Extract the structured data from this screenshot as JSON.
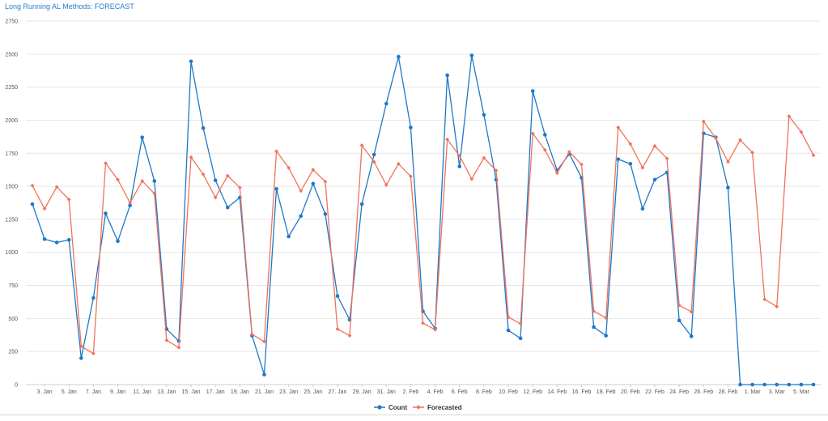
{
  "chart_data": {
    "type": "line",
    "title": "Long Running AL Methods: FORECAST",
    "ylim": [
      0,
      2750
    ],
    "yticks": [
      0,
      250,
      500,
      750,
      1000,
      1250,
      1500,
      1750,
      2000,
      2250,
      2500,
      2750
    ],
    "grid": "horizontal",
    "legend_position": "bottom-center",
    "x_tick_labels": [
      "3. Jan",
      "5. Jan",
      "7. Jan",
      "9. Jan",
      "11. Jan",
      "13. Jan",
      "15. Jan",
      "17. Jan",
      "19. Jan",
      "21. Jan",
      "23. Jan",
      "25. Jan",
      "27. Jan",
      "29. Jan",
      "31. Jan",
      "2. Feb",
      "4. Feb",
      "6. Feb",
      "8. Feb",
      "10. Feb",
      "12. Feb",
      "14. Feb",
      "16. Feb",
      "18. Feb",
      "20. Feb",
      "22. Feb",
      "24. Feb",
      "26. Feb",
      "28. Feb",
      "1. Mar",
      "3. Mar",
      "5. Mar"
    ],
    "x": [
      "2. Jan",
      "3. Jan",
      "4. Jan",
      "5. Jan",
      "6. Jan",
      "7. Jan",
      "8. Jan",
      "9. Jan",
      "10. Jan",
      "11. Jan",
      "12. Jan",
      "13. Jan",
      "14. Jan",
      "15. Jan",
      "16. Jan",
      "17. Jan",
      "18. Jan",
      "19. Jan",
      "20. Jan",
      "21. Jan",
      "22. Jan",
      "23. Jan",
      "24. Jan",
      "25. Jan",
      "26. Jan",
      "27. Jan",
      "28. Jan",
      "29. Jan",
      "30. Jan",
      "31. Jan",
      "1. Feb",
      "2. Feb",
      "3. Feb",
      "4. Feb",
      "5. Feb",
      "6. Feb",
      "7. Feb",
      "8. Feb",
      "9. Feb",
      "10. Feb",
      "11. Feb",
      "12. Feb",
      "13. Feb",
      "14. Feb",
      "15. Feb",
      "16. Feb",
      "17. Feb",
      "18. Feb",
      "19. Feb",
      "20. Feb",
      "21. Feb",
      "22. Feb",
      "23. Feb",
      "24. Feb",
      "25. Feb",
      "26. Feb",
      "27. Feb",
      "28. Feb",
      "29. Feb",
      "1. Mar",
      "2. Mar",
      "3. Mar",
      "4. Mar",
      "5. Mar",
      "6. Mar"
    ],
    "series": [
      {
        "name": "Count",
        "color": "#1f78c8",
        "marker": "circle",
        "values": [
          1365,
          1100,
          1075,
          1095,
          200,
          655,
          1295,
          1085,
          1355,
          1870,
          1540,
          420,
          330,
          2445,
          1940,
          1545,
          1340,
          1415,
          370,
          75,
          1480,
          1120,
          1275,
          1520,
          1290,
          670,
          490,
          1365,
          1740,
          2125,
          2480,
          1945,
          555,
          425,
          2340,
          1650,
          2490,
          2040,
          1550,
          410,
          350,
          2220,
          1890,
          1620,
          1745,
          1565,
          435,
          370,
          1705,
          1670,
          1330,
          1550,
          1605,
          485,
          365,
          1900,
          1870,
          1490,
          0,
          0,
          0,
          0,
          0,
          0,
          0
        ]
      },
      {
        "name": "Forecasted",
        "color": "#f0735a",
        "marker": "diamond",
        "values": [
          1505,
          1330,
          1495,
          1400,
          290,
          235,
          1675,
          1550,
          1375,
          1540,
          1445,
          335,
          280,
          1720,
          1590,
          1415,
          1580,
          1490,
          380,
          325,
          1765,
          1640,
          1465,
          1625,
          1535,
          420,
          370,
          1810,
          1685,
          1510,
          1670,
          1575,
          465,
          415,
          1855,
          1730,
          1555,
          1715,
          1620,
          510,
          460,
          1900,
          1775,
          1600,
          1760,
          1665,
          555,
          505,
          1945,
          1820,
          1640,
          1805,
          1710,
          600,
          550,
          1990,
          1865,
          1685,
          1850,
          1755,
          645,
          590,
          2030,
          1910,
          1735
        ]
      }
    ]
  }
}
